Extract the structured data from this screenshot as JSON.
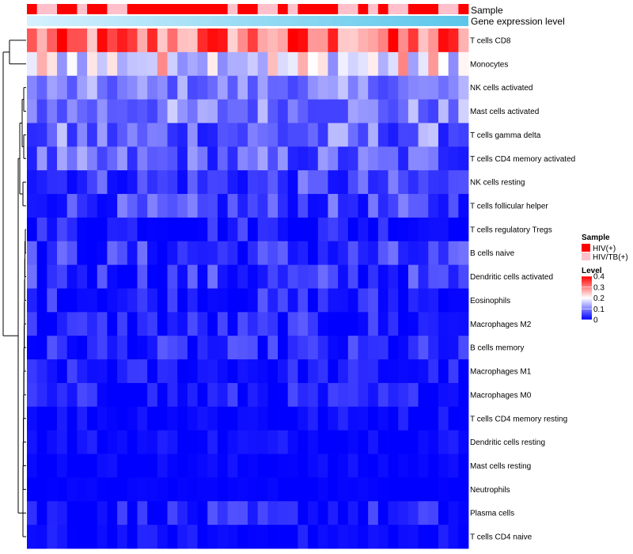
{
  "chart_data": {
    "type": "heatmap",
    "title": "",
    "annotation_labels": [
      "Sample",
      "Gene expression level"
    ],
    "rows": [
      "T cells CD8",
      "Monocytes",
      "NK cells activated",
      "Mast cells activated",
      "T cells gamma delta",
      "T cells CD4 memory activated",
      "NK cells resting",
      "T cells follicular helper",
      "T cells regulatory  Tregs",
      "B cells naive",
      "Dendritic cells activated",
      "Eosinophils",
      "Macrophages M2",
      "B cells memory",
      "Macrophages M1",
      "Macrophages M0",
      "T cells CD4 memory resting",
      "Dendritic cells resting",
      "Mast cells resting",
      "Neutrophils",
      "Plasma cells",
      "T cells CD4 naive"
    ],
    "n_samples": 44,
    "sample_groups": [
      "HIV(+)",
      "HIV/TB(+)",
      "HIV/TB(+)",
      "HIV(+)",
      "HIV(+)",
      "HIV/TB(+)",
      "HIV(+)",
      "HIV(+)",
      "HIV/TB(+)",
      "HIV/TB(+)",
      "HIV(+)",
      "HIV(+)",
      "HIV(+)",
      "HIV(+)",
      "HIV(+)",
      "HIV(+)",
      "HIV(+)",
      "HIV(+)",
      "HIV(+)",
      "HIV(+)",
      "HIV/TB(+)",
      "HIV(+)",
      "HIV(+)",
      "HIV/TB(+)",
      "HIV/TB(+)",
      "HIV(+)",
      "HIV/TB(+)",
      "HIV(+)",
      "HIV(+)",
      "HIV(+)",
      "HIV(+)",
      "HIV/TB(+)",
      "HIV/TB(+)",
      "HIV(+)",
      "HIV/TB(+)",
      "HIV(+)",
      "HIV/TB(+)",
      "HIV/TB(+)",
      "HIV(+)",
      "HIV(+)",
      "HIV(+)",
      "HIV/TB(+)",
      "HIV/TB(+)",
      "HIV(+)"
    ],
    "row_profiles": [
      {
        "base": 0.3,
        "spread": 0.1
      },
      {
        "base": 0.18,
        "spread": 0.1
      },
      {
        "base": 0.09,
        "spread": 0.05
      },
      {
        "base": 0.09,
        "spread": 0.06
      },
      {
        "base": 0.07,
        "spread": 0.07
      },
      {
        "base": 0.06,
        "spread": 0.06
      },
      {
        "base": 0.04,
        "spread": 0.05
      },
      {
        "base": 0.04,
        "spread": 0.05
      },
      {
        "base": 0.02,
        "spread": 0.04
      },
      {
        "base": 0.03,
        "spread": 0.05
      },
      {
        "base": 0.03,
        "spread": 0.05
      },
      {
        "base": 0.02,
        "spread": 0.04
      },
      {
        "base": 0.02,
        "spread": 0.04
      },
      {
        "base": 0.02,
        "spread": 0.04
      },
      {
        "base": 0.015,
        "spread": 0.03
      },
      {
        "base": 0.015,
        "spread": 0.035
      },
      {
        "base": 0.008,
        "spread": 0.02
      },
      {
        "base": 0.008,
        "spread": 0.02
      },
      {
        "base": 0.004,
        "spread": 0.01
      },
      {
        "base": 0.002,
        "spread": 0.004
      },
      {
        "base": 0.015,
        "spread": 0.04
      },
      {
        "base": 0.005,
        "spread": 0.02
      }
    ],
    "value_range": [
      0,
      0.4
    ],
    "colors": {
      "low": "#0000ff",
      "mid": "#ffffff",
      "high": "#ff0000"
    },
    "legend": {
      "sample_title": "Sample",
      "sample_items": [
        {
          "label": "HIV(+)",
          "color": "#ff0000"
        },
        {
          "label": "HIV/TB(+)",
          "color": "#ffc0cb"
        }
      ],
      "level_title": "Level",
      "level_ticks": [
        {
          "value": 0.4,
          "label": "0.4"
        },
        {
          "value": 0.3,
          "label": "0.3"
        },
        {
          "value": 0.2,
          "label": "0.2"
        },
        {
          "value": 0.1,
          "label": "0.1"
        },
        {
          "value": 0,
          "label": "0"
        }
      ]
    },
    "expression_bar_colors": [
      "#d6f1ff",
      "#5bc6ea"
    ]
  }
}
